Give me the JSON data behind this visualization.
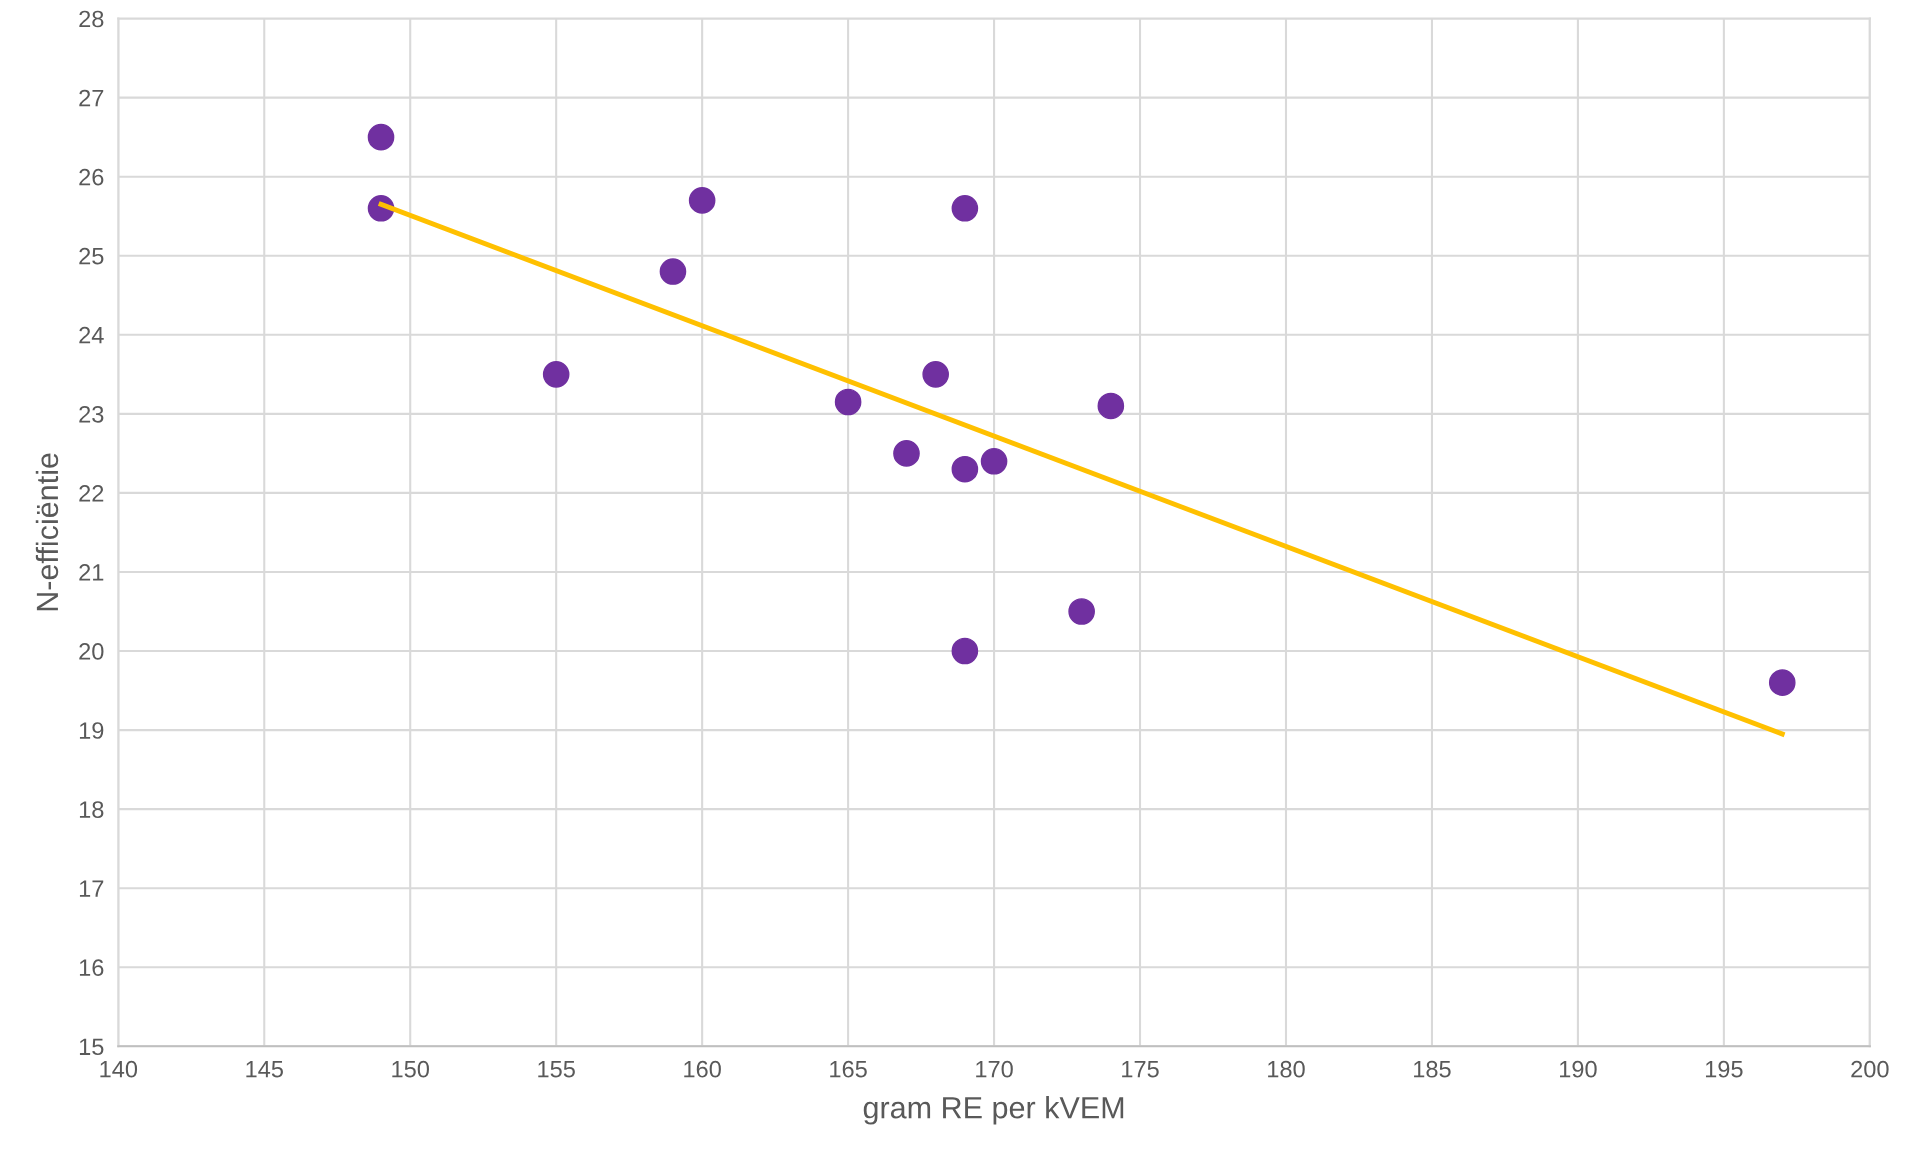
{
  "chart_data": {
    "type": "scatter",
    "xlabel": "gram RE per kVEM",
    "ylabel": "N-efficiëntie",
    "xlim": [
      140,
      200
    ],
    "xticks": [
      140,
      145,
      150,
      155,
      160,
      165,
      170,
      175,
      180,
      185,
      190,
      195,
      200
    ],
    "ylim": [
      15,
      28
    ],
    "yticks": [
      15,
      16,
      17,
      18,
      19,
      20,
      21,
      22,
      23,
      24,
      25,
      26,
      27,
      28
    ],
    "grid": true,
    "series": [
      {
        "marker": "circle",
        "color": "#7030a0",
        "x": [
          149,
          149,
          160,
          169,
          159,
          155,
          168,
          165,
          174,
          167,
          170,
          169,
          173,
          169,
          197
        ],
        "values": [
          26.5,
          25.6,
          25.7,
          25.6,
          24.8,
          23.5,
          23.5,
          23.15,
          23.1,
          22.5,
          22.4,
          22.3,
          20.5,
          20.0,
          19.6
        ]
      },
      {
        "type": "line",
        "marker": "none",
        "color": "#ffc000",
        "x": [
          149,
          197
        ],
        "values": [
          25.65,
          18.95
        ]
      }
    ]
  }
}
